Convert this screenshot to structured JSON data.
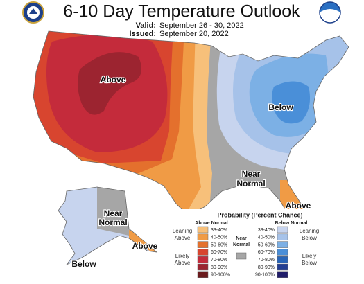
{
  "header": {
    "title": "6-10 Day Temperature Outlook",
    "valid_label": "Valid:",
    "valid": "September 26 - 30, 2022",
    "issued_label": "Issued:",
    "issued": "September 20, 2022"
  },
  "map_labels": {
    "west": "Above",
    "east": "Below",
    "central": [
      "Near",
      "Normal"
    ],
    "florida": "Above",
    "alaska_east": [
      "Near",
      "Normal"
    ],
    "alaska_panhandle": "Above",
    "alaska_southwest": "Below"
  },
  "legend": {
    "title": "Probability (Percent Chance)",
    "above_heading": "Above Normal",
    "below_heading": "Below Normal",
    "near_heading": [
      "Near",
      "Normal"
    ],
    "near_color": "#a6a6a6",
    "leaning_above": [
      "Leaning",
      "Above"
    ],
    "likely_above": [
      "Likely",
      "Above"
    ],
    "leaning_below": [
      "Leaning",
      "Below"
    ],
    "likely_below": [
      "Likely",
      "Below"
    ],
    "above": [
      {
        "range": "33-40%",
        "color": "#f7c07a"
      },
      {
        "range": "40-50%",
        "color": "#f09b45"
      },
      {
        "range": "50-60%",
        "color": "#e4702d"
      },
      {
        "range": "60-70%",
        "color": "#d8452f"
      },
      {
        "range": "70-80%",
        "color": "#c42b3b"
      },
      {
        "range": "80-90%",
        "color": "#9c2430"
      },
      {
        "range": "90-100%",
        "color": "#6a1a1d"
      }
    ],
    "below": [
      {
        "range": "33-40%",
        "color": "#c7d4ee"
      },
      {
        "range": "40-50%",
        "color": "#a6c2e9"
      },
      {
        "range": "50-60%",
        "color": "#7cb0e5"
      },
      {
        "range": "60-70%",
        "color": "#4a8fd8"
      },
      {
        "range": "70-80%",
        "color": "#2865b8"
      },
      {
        "range": "80-90%",
        "color": "#233e93"
      },
      {
        "range": "90-100%",
        "color": "#201d6a"
      }
    ]
  }
}
